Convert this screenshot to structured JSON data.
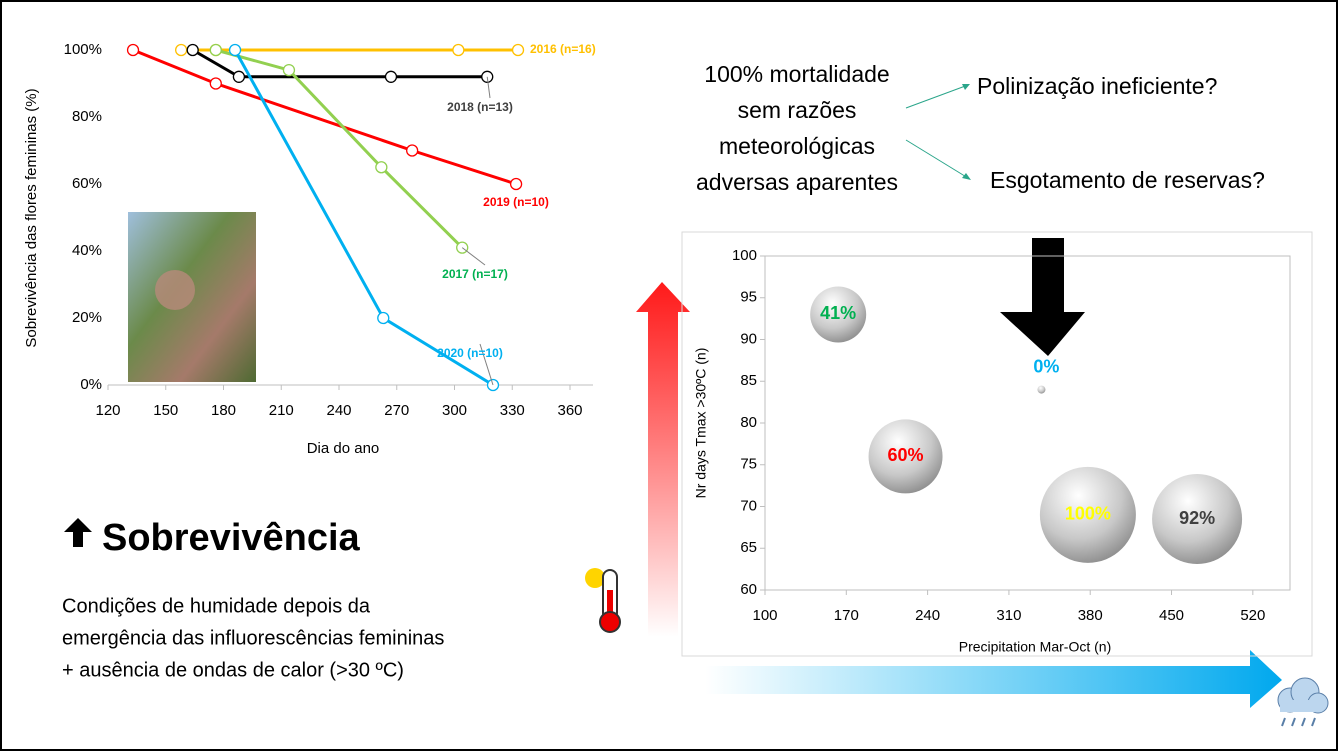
{
  "texts": {
    "mortality": [
      "100% mortalidade",
      "sem razões",
      "meteorológicas",
      "adversas aparentes"
    ],
    "hypotheses": [
      "Polinização ineficiente?",
      "Esgotamento de reservas?"
    ],
    "heading": "Sobrevivência",
    "conditions": [
      "Condições de humidade depois da",
      "emergência das influorescências femininas",
      "+ ausência de ondas de calor (>30 ºC)"
    ]
  },
  "chart_data": [
    {
      "type": "line",
      "x_label": "Dia do ano",
      "y_label": "Sobrevivência das flores femininas (%)",
      "xlim": [
        120,
        372
      ],
      "xticks": [
        120,
        150,
        180,
        210,
        240,
        270,
        300,
        330,
        360
      ],
      "ylim": [
        0,
        100
      ],
      "yticks": [
        {
          "value": 0,
          "label": "0%"
        },
        {
          "value": 20,
          "label": "20%"
        },
        {
          "value": 40,
          "label": "40%"
        },
        {
          "value": 60,
          "label": "60%"
        },
        {
          "value": 80,
          "label": "80%"
        },
        {
          "value": 100,
          "label": "100%"
        }
      ],
      "series": [
        {
          "name": "2016 (n=16)",
          "color": "#ffc000",
          "label_color": "#ffc000",
          "x": [
            158,
            176,
            302,
            333
          ],
          "values": [
            100,
            100,
            100,
            100
          ]
        },
        {
          "name": "2018 (n=13)",
          "color": "#000000",
          "label_color": "#404040",
          "x": [
            164,
            188,
            267,
            317
          ],
          "values": [
            100,
            92,
            92,
            92
          ]
        },
        {
          "name": "2019 (n=10)",
          "color": "#ff0000",
          "label_color": "#ff0000",
          "x": [
            133,
            176,
            278,
            332
          ],
          "values": [
            100,
            90,
            70,
            60
          ]
        },
        {
          "name": "2017 (n=17)",
          "color": "#92d050",
          "label_color": "#00b050",
          "x": [
            176,
            214,
            262,
            304
          ],
          "values": [
            100,
            94,
            65,
            41
          ]
        },
        {
          "name": "2020 (n=10)",
          "color": "#00b0f0",
          "label_color": "#00b0f0",
          "x": [
            186,
            263,
            320
          ],
          "values": [
            100,
            20,
            0
          ]
        }
      ]
    },
    {
      "type": "scatter",
      "x_label": "Precipitation Mar-Oct (n)",
      "y_label": "Nr days Tmax >30ºC (n)",
      "xlim": [
        100,
        552
      ],
      "xticks": [
        100,
        170,
        240,
        310,
        380,
        450,
        520
      ],
      "ylim": [
        60,
        100
      ],
      "yticks": [
        60,
        65,
        70,
        75,
        80,
        85,
        90,
        95,
        100
      ],
      "x": [
        163,
        338,
        221,
        378,
        472
      ],
      "values": [
        93,
        84,
        76,
        69,
        68.5
      ],
      "sizes": [
        28,
        4,
        37,
        48,
        45
      ],
      "labels": [
        "41%",
        "0%",
        "60%",
        "100%",
        "92%"
      ],
      "label_colors": [
        "#00b050",
        "#00b0f0",
        "#ff0000",
        "#ffff00",
        "#404040"
      ]
    }
  ]
}
